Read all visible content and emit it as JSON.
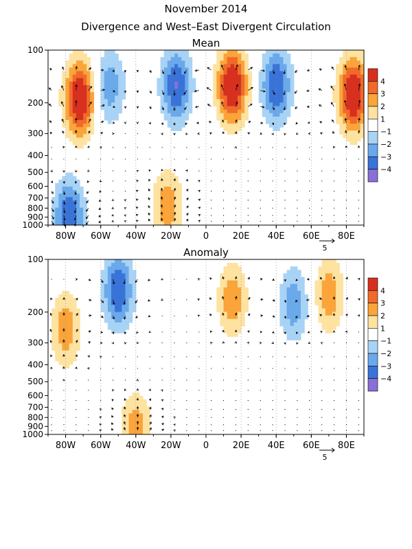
{
  "figure": {
    "title": "November 2014",
    "subtitle": "Divergence and West–East Divergent Circulation"
  },
  "colorbar": {
    "levels": [
      "4",
      "3",
      "2",
      "1",
      "−1",
      "−2",
      "−3",
      "−4"
    ],
    "colors": [
      "#d7301f",
      "#f06a2a",
      "#faa43a",
      "#fde2a0",
      "#ffffff",
      "#a8d3f5",
      "#6aa9ea",
      "#3a73d8",
      "#8a6fd6"
    ]
  },
  "chart_data": [
    {
      "type": "heatmap",
      "title": "Mean",
      "x_ticks": [
        "80W",
        "60W",
        "40W",
        "20W",
        "0",
        "20E",
        "40E",
        "60E",
        "80E"
      ],
      "x_tick_lon": [
        -80,
        -60,
        -40,
        -20,
        0,
        20,
        40,
        60,
        80
      ],
      "xlim_lon": [
        -90,
        90
      ],
      "y_ticks": [
        "100",
        "200",
        "300",
        "400",
        "500",
        "600",
        "700",
        "800",
        "900",
        "1000"
      ],
      "y_tick_hpa": [
        100,
        200,
        300,
        400,
        500,
        600,
        700,
        800,
        900,
        1000
      ],
      "ylim_hpa": [
        100,
        1000
      ],
      "y_scale": "log",
      "reference_vector_label": "5",
      "divergence_centers": [
        {
          "lon": -72,
          "p": 190,
          "value": 4
        },
        {
          "lon": -55,
          "p": 160,
          "value": -2
        },
        {
          "lon": -17,
          "p": 160,
          "value": -3
        },
        {
          "lon": 15,
          "p": 160,
          "value": 4
        },
        {
          "lon": 40,
          "p": 160,
          "value": -3
        },
        {
          "lon": 84,
          "p": 180,
          "value": 4
        },
        {
          "lon": -78,
          "p": 900,
          "value": -3
        },
        {
          "lon": -22,
          "p": 780,
          "value": 2
        }
      ]
    },
    {
      "type": "heatmap",
      "title": "Anomaly",
      "x_ticks": [
        "80W",
        "60W",
        "40W",
        "20W",
        "0",
        "20E",
        "40E",
        "60E",
        "80E"
      ],
      "x_tick_lon": [
        -80,
        -60,
        -40,
        -20,
        0,
        20,
        40,
        60,
        80
      ],
      "xlim_lon": [
        -90,
        90
      ],
      "y_ticks": [
        "100",
        "200",
        "300",
        "400",
        "500",
        "600",
        "700",
        "800",
        "900",
        "1000"
      ],
      "y_tick_hpa": [
        100,
        200,
        300,
        400,
        500,
        600,
        700,
        800,
        900,
        1000
      ],
      "ylim_hpa": [
        100,
        1000
      ],
      "y_scale": "log",
      "reference_vector_label": "5",
      "divergence_centers": [
        {
          "lon": -50,
          "p": 150,
          "value": -3
        },
        {
          "lon": -80,
          "p": 250,
          "value": 2
        },
        {
          "lon": 15,
          "p": 170,
          "value": 2
        },
        {
          "lon": 70,
          "p": 160,
          "value": 2
        },
        {
          "lon": 50,
          "p": 180,
          "value": -2
        },
        {
          "lon": -40,
          "p": 940,
          "value": 2
        }
      ]
    }
  ]
}
